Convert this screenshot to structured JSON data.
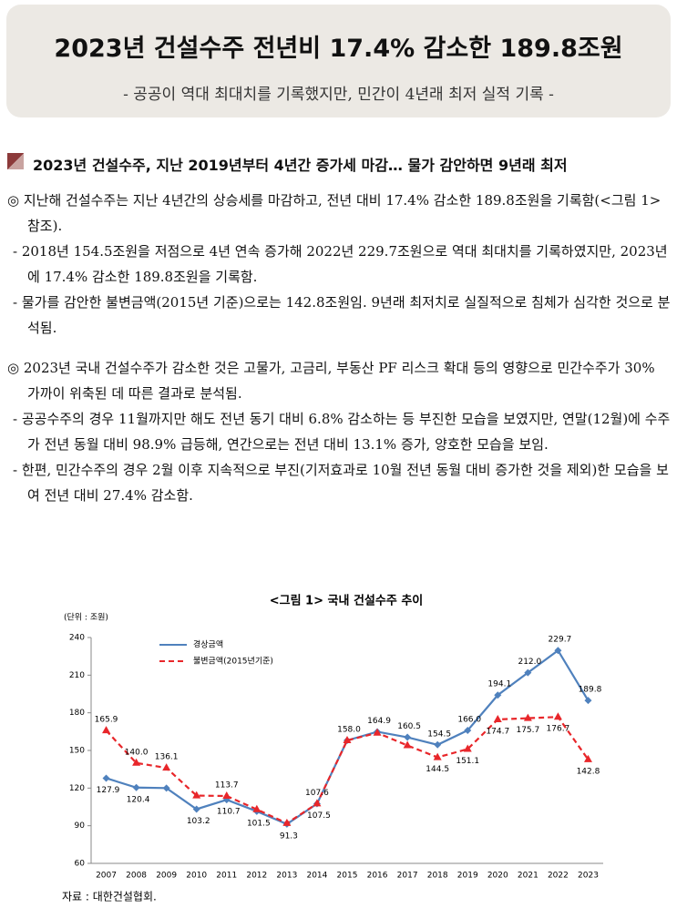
{
  "header": {
    "title": "2023년 건설수주 전년비 17.4% 감소한 189.8조원",
    "subtitle": "- 공공이 역대 최대치를 기록했지만, 민간이 4년래 최저 실적 기록 -"
  },
  "section": {
    "heading": "2023년 건설수주, 지난 2019년부터 4년간 증가세 마감… 물가 감안하면 9년래 최저",
    "bullets": [
      {
        "text": "지난해 건설수주는 지난 4년간의 상승세를 마감하고, 전년 대비 17.4% 감소한 189.8조원을 기록함(<그림 1> 참조).",
        "subs": [
          "2018년 154.5조원을 저점으로 4년 연속 증가해 2022년 229.7조원으로 역대 최대치를 기록하였지만, 2023년에 17.4% 감소한 189.8조원을 기록함.",
          "물가를 감안한 불변금액(2015년 기준)으로는 142.8조원임. 9년래 최저치로 실질적으로 침체가 심각한 것으로 분석됨."
        ]
      },
      {
        "text": "2023년 국내 건설수주가 감소한 것은 고물가, 고금리, 부동산 PF 리스크 확대 등의 영향으로 민간수주가 30% 가까이 위축된 데 따른 결과로 분석됨.",
        "subs": [
          "공공수주의 경우 11월까지만 해도 전년 동기 대비 6.8% 감소하는 등 부진한 모습을 보였지만, 연말(12월)에 수주가 전년 동월 대비 98.9% 급등해, 연간으로는 전년 대비 13.1% 증가, 양호한 모습을 보임.",
          "한편, 민간수주의 경우 2월 이후 지속적으로 부진(기저효과로 10월 전년 동월 대비 증가한 것을 제외)한 모습을 보여 전년 대비 27.4% 감소함."
        ]
      }
    ]
  },
  "chart_data": {
    "type": "line",
    "title": "<그림 1> 국내 건설수주 추이",
    "unit": "(단위 : 조원)",
    "source": "자료 : 대한건설협회.",
    "categories": [
      "2007",
      "2008",
      "2009",
      "2010",
      "2011",
      "2012",
      "2013",
      "2014",
      "2015",
      "2016",
      "2017",
      "2018",
      "2019",
      "2020",
      "2021",
      "2022",
      "2023"
    ],
    "series": [
      {
        "name": "경상금액",
        "color": "#4f81bd",
        "dashed": false,
        "marker": "diamond",
        "values": [
          127.9,
          120.4,
          120,
          103.2,
          110.7,
          101.5,
          91.3,
          107.5,
          158.0,
          164.9,
          160.5,
          154.5,
          166.0,
          194.1,
          212.0,
          229.7,
          189.8
        ],
        "value_labels": [
          "127.9",
          "120.4",
          null,
          "103.2",
          "110.7",
          "101.5",
          "91.3",
          "107.5",
          "158.0",
          "164.9",
          "160.5",
          "154.5",
          "166.0",
          "194.1",
          "212.0",
          "229.7",
          "189.8"
        ]
      },
      {
        "name": "불변금액(2015년기준)",
        "color": "#e8262a",
        "dashed": true,
        "marker": "triangle",
        "values": [
          165.9,
          140.0,
          136.1,
          114,
          113.7,
          103,
          92,
          107.6,
          158,
          164,
          154,
          144.5,
          151.1,
          174.7,
          175.7,
          176.7,
          142.8
        ],
        "value_labels": [
          "165.9",
          "140.0",
          "136.1",
          null,
          "113.7",
          null,
          null,
          "107.6",
          null,
          null,
          null,
          "144.5",
          "151.1",
          "174.7",
          "175.7",
          "176.7",
          "142.8"
        ]
      }
    ],
    "ylim": [
      60,
      240
    ],
    "yticks": [
      60,
      90,
      120,
      150,
      180,
      210,
      240
    ],
    "legend": "upper-left",
    "grid": false
  }
}
